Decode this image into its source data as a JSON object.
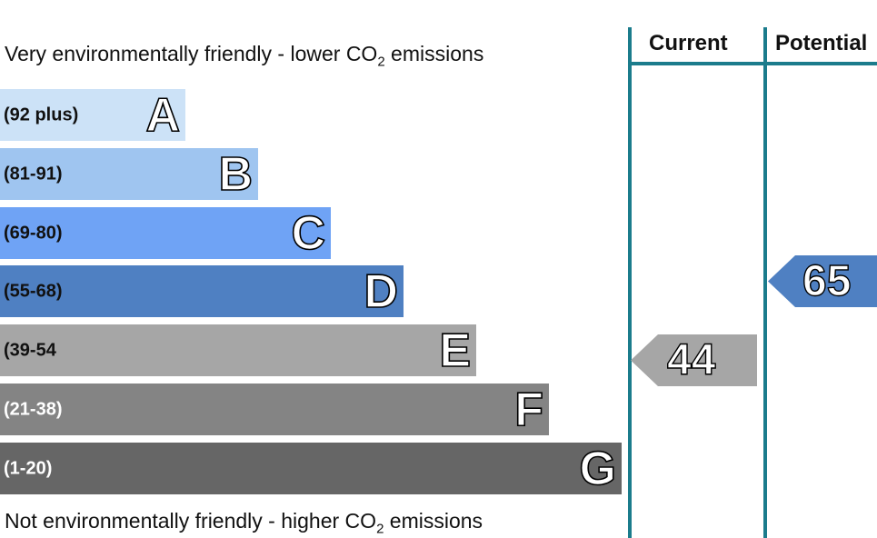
{
  "chart_data": {
    "type": "bar",
    "title_top": "Very environmentally friendly - lower CO",
    "title_top_sub": "2",
    "title_top_tail": " emissions",
    "title_bottom": "Not environmentally friendly - higher CO",
    "title_bottom_sub": "2",
    "title_bottom_tail": " emissions",
    "bands": [
      {
        "letter": "A",
        "range": "(92 plus)",
        "color": "#cce2f7",
        "text_color": "#111111"
      },
      {
        "letter": "B",
        "range": "(81-91)",
        "color": "#9fc5f0",
        "text_color": "#111111"
      },
      {
        "letter": "C",
        "range": "(69-80)",
        "color": "#6fa3f5",
        "text_color": "#111111"
      },
      {
        "letter": "D",
        "range": "(55-68)",
        "color": "#4f80c2",
        "text_color": "#111111"
      },
      {
        "letter": "E",
        "range": "(39-54",
        "color": "#a6a6a6",
        "text_color": "#111111"
      },
      {
        "letter": "F",
        "range": "(21-38)",
        "color": "#848484",
        "text_color": "#ffffff"
      },
      {
        "letter": "G",
        "range": "(1-20)",
        "color": "#666666",
        "text_color": "#ffffff"
      }
    ],
    "columns": [
      "Current",
      "Potential"
    ],
    "current": {
      "value": 44,
      "label": "44",
      "color": "#a6a6a6"
    },
    "potential": {
      "value": 65,
      "label": "65",
      "color": "#4f80c2"
    },
    "divider_color": "#1b7c8c"
  }
}
